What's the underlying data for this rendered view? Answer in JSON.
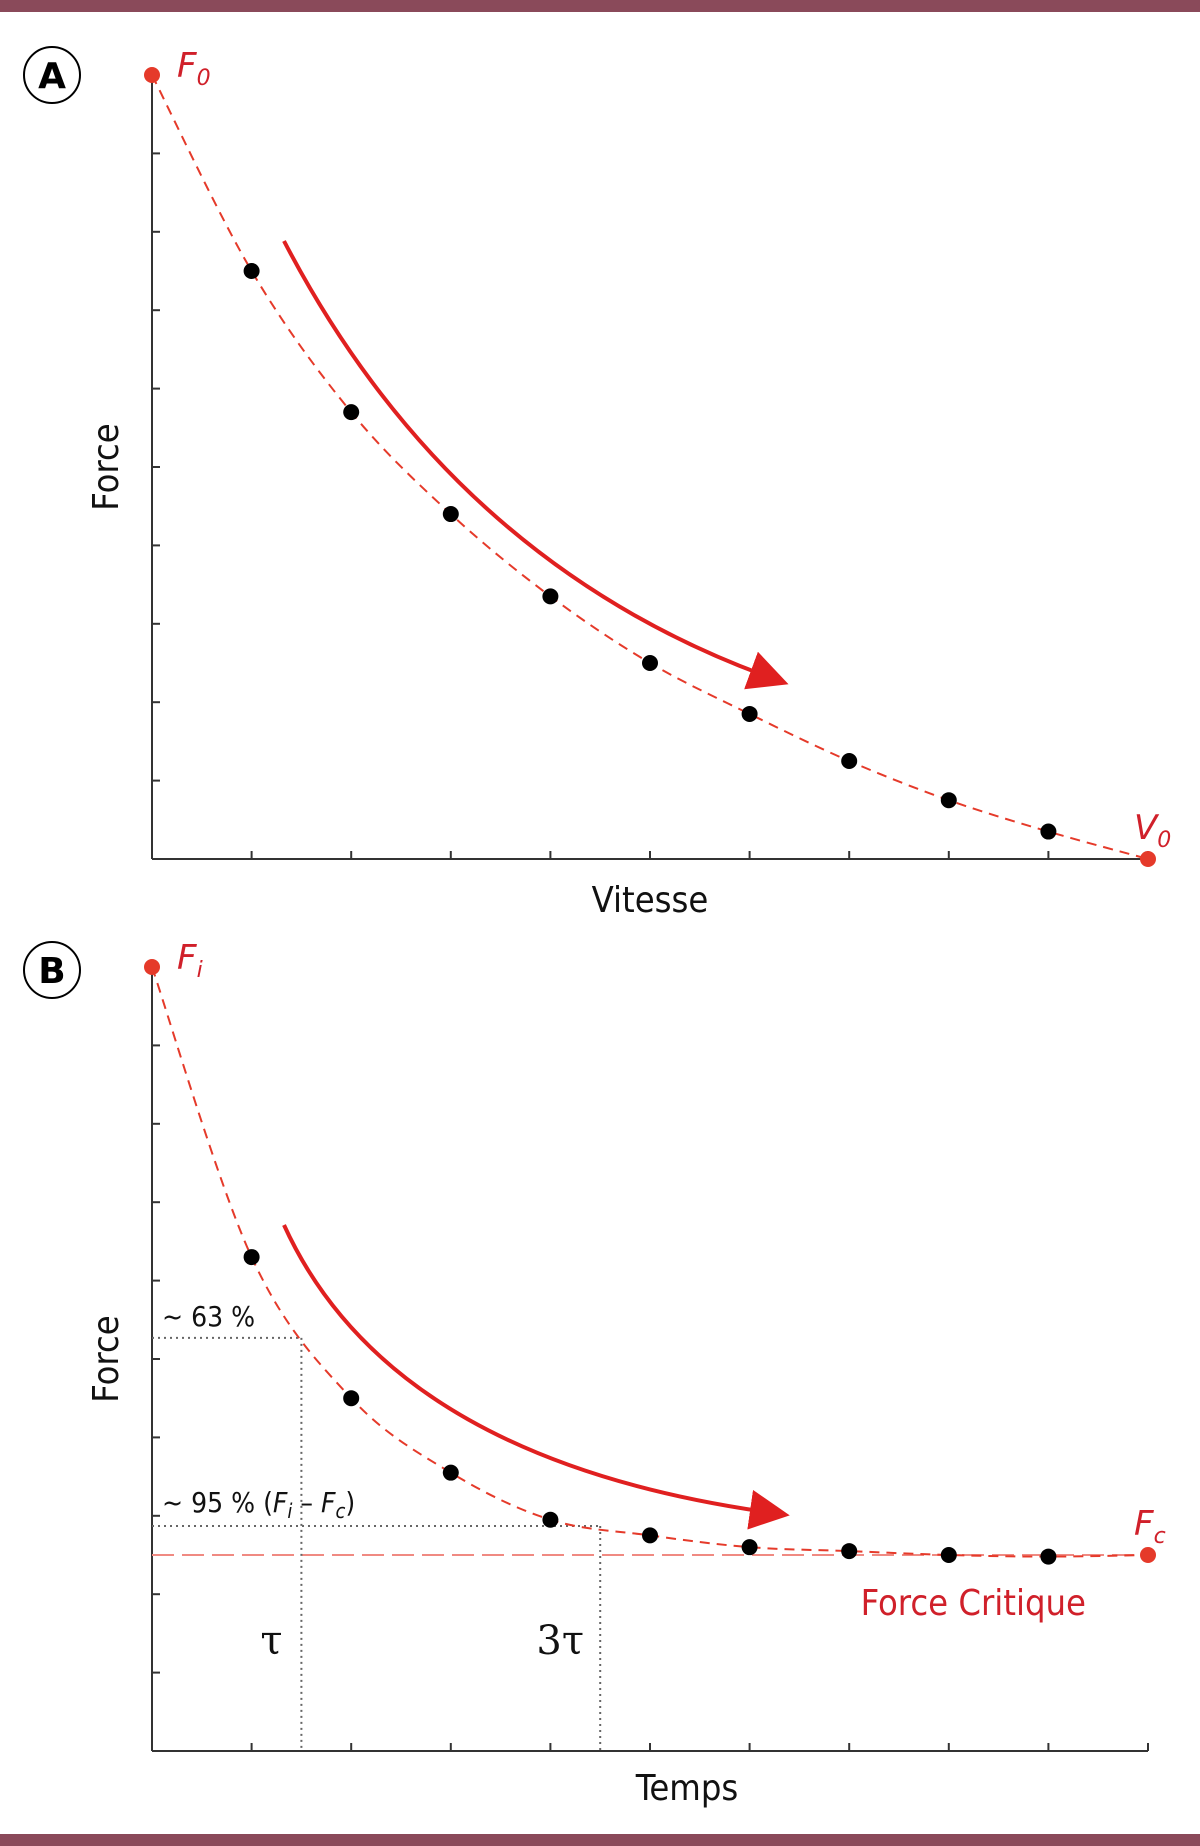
{
  "colors": {
    "frame": "#8a4a5a",
    "curve": "#e53a2a",
    "arrow": "#e02020",
    "point": "#000000",
    "label_red": "#d0202a",
    "axis": "#333333",
    "guide": "#666666",
    "critical_line": "#f08a82"
  },
  "chart_data": [
    {
      "panel": "A",
      "type": "scatter",
      "xlabel": "Vitesse",
      "ylabel": "Force",
      "xlim": [
        0,
        10
      ],
      "ylim": [
        0,
        10
      ],
      "x_ticks": 10,
      "y_ticks": 10,
      "endpoints": [
        {
          "label_base": "F",
          "label_sub": "0",
          "x": 0,
          "y": 10
        },
        {
          "label_base": "V",
          "label_sub": "0",
          "x": 10,
          "y": 0
        }
      ],
      "fit_curve": "dashed",
      "points": [
        {
          "x": 1,
          "y": 7.5
        },
        {
          "x": 2,
          "y": 5.7
        },
        {
          "x": 3,
          "y": 4.4
        },
        {
          "x": 4,
          "y": 3.35
        },
        {
          "x": 5,
          "y": 2.5
        },
        {
          "x": 6,
          "y": 1.85
        },
        {
          "x": 7,
          "y": 1.25
        },
        {
          "x": 8,
          "y": 0.75
        },
        {
          "x": 9,
          "y": 0.35
        }
      ]
    },
    {
      "panel": "B",
      "type": "scatter",
      "xlabel": "Temps",
      "ylabel": "Force",
      "xlim": [
        0,
        10
      ],
      "ylim": [
        0,
        10
      ],
      "x_ticks": 10,
      "y_ticks": 10,
      "endpoints": [
        {
          "label_base": "F",
          "label_sub": "i",
          "x": 0,
          "y": 10
        },
        {
          "label_base": "F",
          "label_sub": "c",
          "x": 10,
          "y": 2.5
        }
      ],
      "fit_curve": "dashed",
      "asymptote": {
        "y": 2.5,
        "label": "Force Critique"
      },
      "points": [
        {
          "x": 1,
          "y": 6.3
        },
        {
          "x": 2,
          "y": 4.5
        },
        {
          "x": 3,
          "y": 3.55
        },
        {
          "x": 4,
          "y": 2.95
        },
        {
          "x": 5,
          "y": 2.75
        },
        {
          "x": 6,
          "y": 2.6
        },
        {
          "x": 7,
          "y": 2.55
        },
        {
          "x": 8,
          "y": 2.5
        },
        {
          "x": 9,
          "y": 2.48
        }
      ],
      "annotations": [
        {
          "text": "~ 63 %",
          "y": 5.27,
          "x_marker": 1.5,
          "marker_label": "τ"
        },
        {
          "text_prefix": "~ 95 % (",
          "text_F1": "F",
          "text_s1": "i",
          "text_mid": " – ",
          "text_F2": "F",
          "text_s2": "c",
          "text_suffix": ")",
          "y": 2.87,
          "x_marker": 4.5,
          "marker_label": "3τ"
        }
      ]
    }
  ]
}
